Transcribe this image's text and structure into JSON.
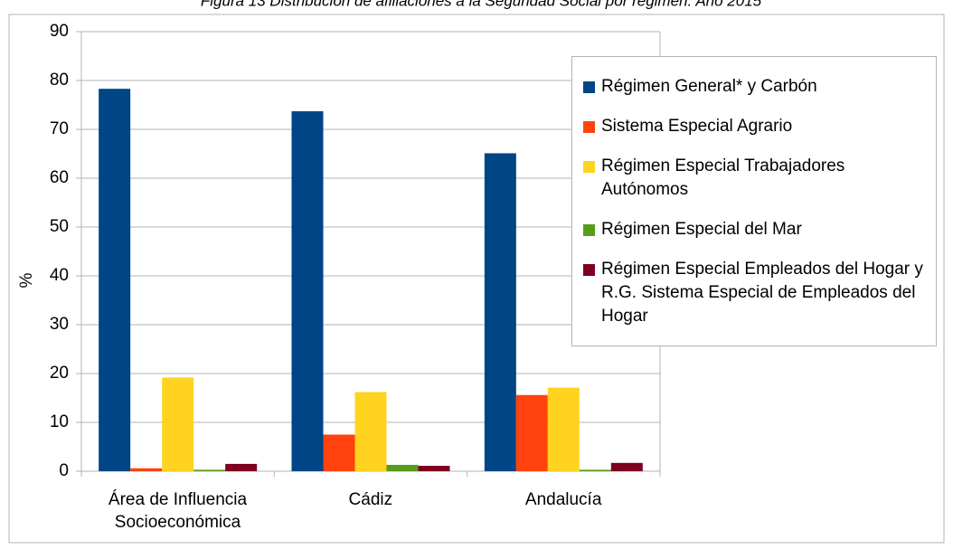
{
  "chart_data": {
    "type": "bar",
    "title": "Figura 13 Distribución de afiliaciones a la Seguridad Social por régimen. Año 2015",
    "y_label": "%",
    "categories": [
      "Área de Influencia Socioeconómica",
      "Cádiz",
      "Andalucía"
    ],
    "series": [
      {
        "name": "Régimen General* y Carbón",
        "color": "#004586",
        "values": [
          78.3,
          73.7,
          65.1
        ]
      },
      {
        "name": "Sistema Especial Agrario",
        "color": "#ff420e",
        "values": [
          0.6,
          7.5,
          15.6
        ]
      },
      {
        "name": "Régimen Especial Trabajadores Autónomos",
        "color": "#ffd320",
        "values": [
          19.2,
          16.2,
          17.1
        ]
      },
      {
        "name": "Régimen Especial del Mar",
        "color": "#579d1c",
        "values": [
          0.3,
          1.3,
          0.3
        ]
      },
      {
        "name": "Régimen Especial Empleados del Hogar y R.G. Sistema Especial de Empleados del Hogar",
        "color": "#7e0021",
        "values": [
          1.5,
          1.1,
          1.7
        ]
      }
    ],
    "ylim": [
      0,
      90
    ],
    "yticks": [
      0,
      10,
      20,
      30,
      40,
      50,
      60,
      70,
      80,
      90
    ],
    "grid": true,
    "legend": "right"
  }
}
